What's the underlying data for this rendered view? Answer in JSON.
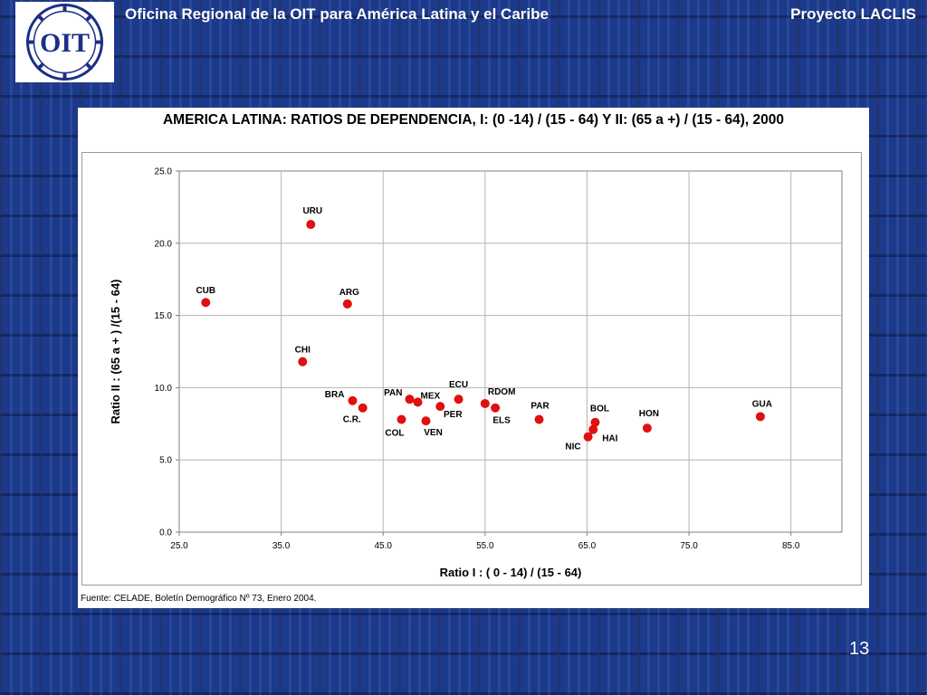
{
  "header": {
    "logo_text": "OIT",
    "left_title": "Oficina Regional de la OIT para América Latina y el Caribe",
    "right_title": "Proyecto LACLIS"
  },
  "chart_data": {
    "type": "scatter",
    "title": "AMERICA LATINA: RATIOS DE DEPENDENCIA,  I: (0 -14) / (15 - 64)  Y  II:  (65 a +) / (15 - 64), 2000",
    "xlabel": "Ratio I : ( 0 - 14) / (15 - 64)",
    "ylabel": "Ratio II : (65 a + ) /(15 - 64)",
    "xlim": [
      25,
      90
    ],
    "ylim": [
      0,
      25
    ],
    "x_ticks": [
      "25.0",
      "35.0",
      "45.0",
      "55.0",
      "65.0",
      "75.0",
      "85.0"
    ],
    "y_ticks": [
      "0.0",
      "5.0",
      "10.0",
      "15.0",
      "20.0",
      "25.0"
    ],
    "grid": true,
    "marker_color": "#e01010",
    "points": [
      {
        "label": "CUB",
        "x": 27.6,
        "y": 15.9
      },
      {
        "label": "URU",
        "x": 37.9,
        "y": 21.3
      },
      {
        "label": "ARG",
        "x": 41.5,
        "y": 15.8
      },
      {
        "label": "CHI",
        "x": 37.1,
        "y": 11.8
      },
      {
        "label": "BRA",
        "x": 42.0,
        "y": 9.1
      },
      {
        "label": "C.R.",
        "x": 43.0,
        "y": 8.6
      },
      {
        "label": "PAN",
        "x": 47.6,
        "y": 9.2
      },
      {
        "label": "MEX",
        "x": 48.4,
        "y": 9.0
      },
      {
        "label": "COL",
        "x": 46.8,
        "y": 7.8
      },
      {
        "label": "VEN",
        "x": 49.2,
        "y": 7.7
      },
      {
        "label": "PER",
        "x": 50.6,
        "y": 8.7
      },
      {
        "label": "ECU",
        "x": 52.4,
        "y": 9.2
      },
      {
        "label": "RDOM",
        "x": 55.0,
        "y": 8.9
      },
      {
        "label": "ELS",
        "x": 56.0,
        "y": 8.6
      },
      {
        "label": "PAR",
        "x": 60.3,
        "y": 7.8
      },
      {
        "label": "BOL",
        "x": 65.8,
        "y": 7.6
      },
      {
        "label": "HAI",
        "x": 65.6,
        "y": 7.1
      },
      {
        "label": "NIC",
        "x": 65.1,
        "y": 6.6
      },
      {
        "label": "HON",
        "x": 70.9,
        "y": 7.2
      },
      {
        "label": "GUA",
        "x": 82.0,
        "y": 8.0
      }
    ]
  },
  "source_note": "Fuente: CELADE, Boletín Demográfico Nº 73, Enero 2004.",
  "page_number": "13"
}
